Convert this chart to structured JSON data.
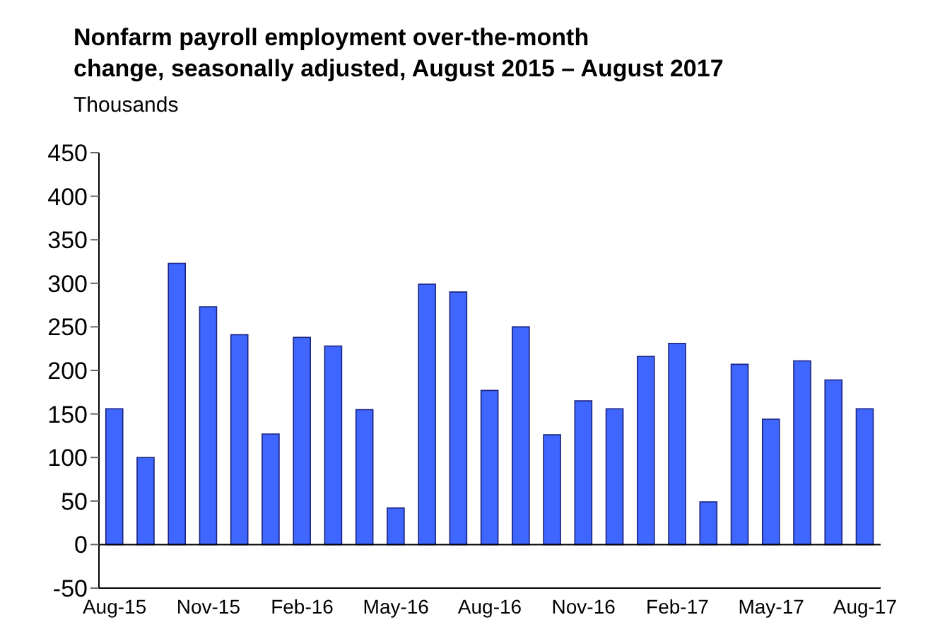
{
  "chart_data": {
    "type": "bar",
    "title": "Nonfarm payroll employment over-the-month change, seasonally adjusted, August 2015 – August 2017",
    "ylabel": "Thousands",
    "categories": [
      "Aug-15",
      null,
      null,
      "Nov-15",
      null,
      null,
      "Feb-16",
      null,
      null,
      "May-16",
      null,
      null,
      "Aug-16",
      null,
      null,
      "Nov-16",
      null,
      null,
      "Feb-17",
      null,
      null,
      "May-17",
      null,
      null,
      "Aug-17"
    ],
    "values": [
      156,
      100,
      323,
      273,
      241,
      127,
      238,
      228,
      155,
      42,
      299,
      290,
      177,
      250,
      126,
      165,
      156,
      216,
      231,
      49,
      207,
      144,
      211,
      189,
      156
    ],
    "color": "#3f66ff",
    "ylim": [
      -50,
      450
    ],
    "yticks": [
      -50,
      0,
      50,
      100,
      150,
      200,
      250,
      300,
      350,
      400,
      450
    ],
    "grid": false,
    "ref_lines": [
      {
        "axis": "y",
        "value": 0,
        "color": "#000000"
      }
    ]
  }
}
